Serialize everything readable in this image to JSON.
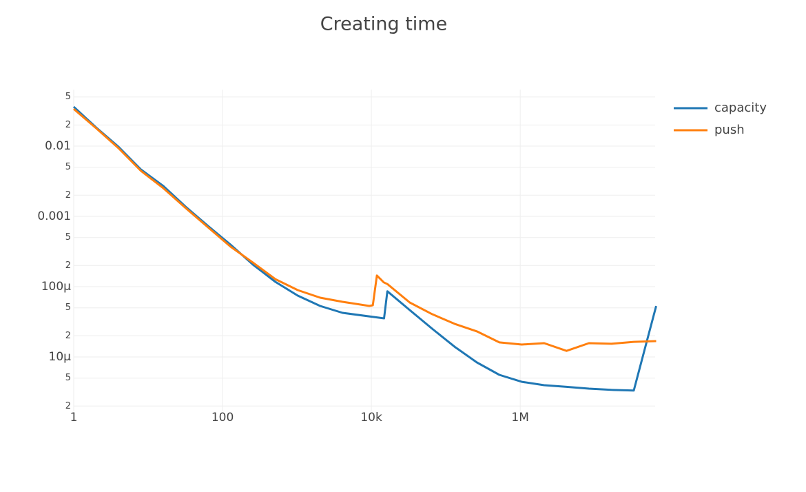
{
  "chart_data": {
    "type": "line",
    "title": "Creating time",
    "log_x": true,
    "log_y": true,
    "grid": true,
    "legend": "top-right",
    "xlim": [
      1,
      65000000
    ],
    "ylim": [
      1.68e-06,
      0.0637
    ],
    "xticks": [
      1,
      100,
      {
        "value": 10000,
        "label": "10k"
      },
      {
        "value": 1000000,
        "label": "1M"
      }
    ],
    "yticks": [
      {
        "value": 2e-06,
        "label": "2"
      },
      {
        "value": 5e-06,
        "label": "5"
      },
      {
        "value": 1e-05,
        "label": "10µ"
      },
      {
        "value": 2e-05,
        "label": "2"
      },
      {
        "value": 5e-05,
        "label": "5"
      },
      {
        "value": 0.0001,
        "label": "100µ"
      },
      {
        "value": 0.0002,
        "label": "2"
      },
      {
        "value": 0.0005,
        "label": "5"
      },
      0.001,
      {
        "value": 0.002,
        "label": "2"
      },
      {
        "value": 0.005,
        "label": "5"
      },
      0.01,
      {
        "value": 0.02,
        "label": "2"
      },
      {
        "value": 0.05,
        "label": "5"
      }
    ],
    "series": [
      {
        "name": "capacity",
        "color": "#1f77b4",
        "x": [
          1,
          2,
          4,
          8,
          16,
          32,
          64,
          128,
          256,
          512,
          1024,
          2048,
          4096,
          14800,
          16384,
          32768,
          65536,
          131072,
          262144,
          524288,
          1048576,
          2097152,
          4194304,
          8388608,
          16777216,
          33554432,
          67108864
        ],
        "values": [
          0.0362,
          0.0184,
          0.00978,
          0.00464,
          0.0027,
          0.00137,
          0.000729,
          0.000396,
          0.000206,
          0.000117,
          7.46e-05,
          5.31e-05,
          4.24e-05,
          3.54e-05,
          8.6e-05,
          4.64e-05,
          2.52e-05,
          1.4e-05,
          8.35e-06,
          5.56e-06,
          4.43e-06,
          3.96e-06,
          3.75e-06,
          3.54e-06,
          3.4e-06,
          3.33e-06,
          5.3e-05
        ]
      },
      {
        "name": "push",
        "color": "#ff7f0e",
        "x": [
          1,
          2,
          4,
          8,
          16,
          32,
          64,
          128,
          256,
          512,
          1024,
          2048,
          4096,
          9380,
          10450,
          11860,
          14680,
          16384,
          32768,
          65536,
          131072,
          262144,
          524288,
          1048576,
          2097152,
          4194304,
          8388608,
          16777216,
          33554432,
          67108864
        ],
        "values": [
          0.0338,
          0.018,
          0.00935,
          0.00444,
          0.00252,
          0.00131,
          0.000697,
          0.000371,
          0.00022,
          0.000128,
          8.94e-05,
          6.97e-05,
          6.08e-05,
          5.31e-05,
          5.43e-05,
          0.000144,
          0.000115,
          0.000109,
          5.95e-05,
          4.06e-05,
          2.96e-05,
          2.31e-05,
          1.61e-05,
          1.5e-05,
          1.57e-05,
          1.22e-05,
          1.57e-05,
          1.54e-05,
          1.64e-05,
          1.68e-05
        ]
      }
    ]
  }
}
